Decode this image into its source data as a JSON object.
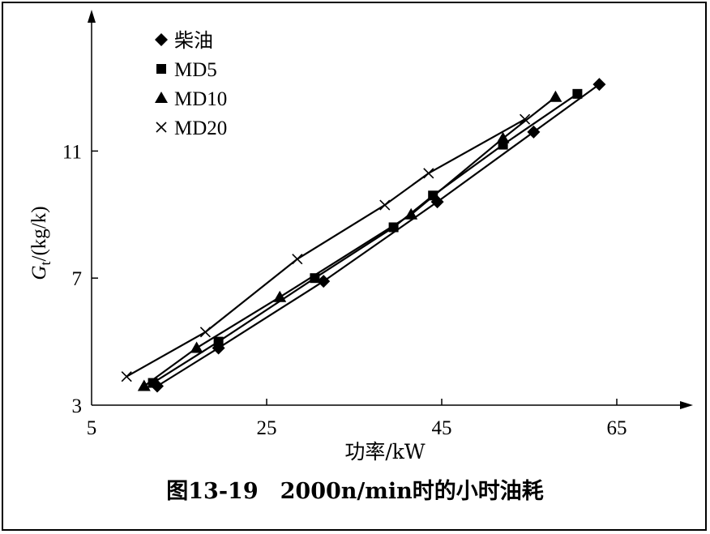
{
  "chart_data": {
    "type": "line",
    "title": "",
    "caption": "图13-19　2000n/min时的小时油耗",
    "xlabel": "功率/kW",
    "ylabel_symbol": "G",
    "ylabel_subscript": "t",
    "ylabel_unit": "/(kg/k)",
    "xlim": [
      5,
      72
    ],
    "ylim": [
      3,
      15
    ],
    "xticks": [
      5,
      25,
      45,
      65
    ],
    "yticks": [
      3,
      7,
      11
    ],
    "legend_position": "top-left",
    "series": [
      {
        "name": "柴油",
        "marker": "diamond",
        "points": [
          [
            12.5,
            3.6
          ],
          [
            19.5,
            4.8
          ],
          [
            31.5,
            6.9
          ],
          [
            44.5,
            9.4
          ],
          [
            55.5,
            11.6
          ],
          [
            63,
            13.1
          ]
        ]
      },
      {
        "name": "MD5",
        "marker": "square",
        "points": [
          [
            12,
            3.7
          ],
          [
            19.5,
            5.0
          ],
          [
            30.5,
            7.0
          ],
          [
            39.5,
            8.6
          ],
          [
            44,
            9.6
          ],
          [
            52,
            11.2
          ],
          [
            60.5,
            12.8
          ]
        ]
      },
      {
        "name": "MD10",
        "marker": "triangle",
        "points": [
          [
            11,
            3.6
          ],
          [
            17,
            4.8
          ],
          [
            26.5,
            6.4
          ],
          [
            41.5,
            9.0
          ],
          [
            52,
            11.4
          ],
          [
            58,
            12.7
          ]
        ]
      },
      {
        "name": "MD20",
        "marker": "cross",
        "points": [
          [
            9,
            3.9
          ],
          [
            18,
            5.3
          ],
          [
            28.5,
            7.6
          ],
          [
            38.5,
            9.3
          ],
          [
            43.5,
            10.3
          ],
          [
            54.5,
            12.0
          ]
        ]
      }
    ]
  }
}
